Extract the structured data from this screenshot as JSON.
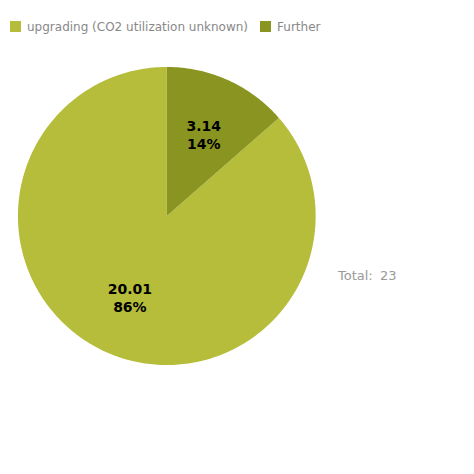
{
  "chart_data": {
    "type": "pie",
    "categories": [
      "upgrading (CO2 utilization unknown)",
      "Further"
    ],
    "values": [
      20.01,
      3.14
    ],
    "value_labels": [
      "20.01\n86%",
      "3.14\n14%"
    ],
    "colors": [
      "#b5bd3a",
      "#8a9420"
    ],
    "legend": "top-left",
    "data_labels": true,
    "annotations": [
      "Total:",
      "23"
    ]
  }
}
